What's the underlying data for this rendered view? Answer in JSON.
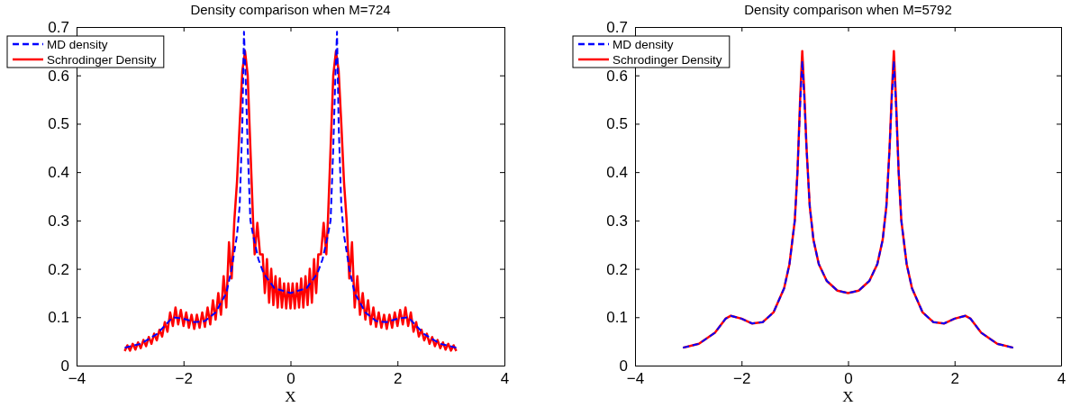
{
  "chart_data": [
    {
      "type": "line",
      "title": "Density comparison when M=724",
      "xlabel": "X",
      "xlim": [
        -4,
        4
      ],
      "xticks": [
        -4,
        -2,
        0,
        2,
        4
      ],
      "ylim": [
        0,
        0.7
      ],
      "yticks": [
        0,
        0.1,
        0.2,
        0.3,
        0.4,
        0.5,
        0.6,
        0.7
      ],
      "grid": false,
      "legend": "top left",
      "series": [
        {
          "name": "MD density",
          "color": "#0000ff",
          "line_style": "dashed",
          "x": [
            -3.1,
            -2.8,
            -2.5,
            -2.2,
            -2.0,
            -1.8,
            -1.6,
            -1.4,
            -1.2,
            -1.1,
            -1.0,
            -0.95,
            -0.9,
            -0.87,
            -0.84,
            -0.8,
            -0.75,
            -0.7,
            -0.6,
            -0.5,
            -0.3,
            0,
            0.3,
            0.5,
            0.6,
            0.7,
            0.75,
            0.8,
            0.84,
            0.87,
            0.9,
            0.95,
            1.0,
            1.1,
            1.2,
            1.4,
            1.6,
            1.8,
            2.0,
            2.2,
            2.5,
            2.8,
            3.1
          ],
          "values": [
            0.037,
            0.045,
            0.065,
            0.1,
            0.097,
            0.09,
            0.092,
            0.11,
            0.15,
            0.2,
            0.27,
            0.33,
            0.5,
            0.69,
            0.6,
            0.45,
            0.3,
            0.27,
            0.22,
            0.19,
            0.16,
            0.15,
            0.16,
            0.19,
            0.22,
            0.27,
            0.3,
            0.45,
            0.6,
            0.69,
            0.5,
            0.33,
            0.27,
            0.2,
            0.15,
            0.11,
            0.092,
            0.09,
            0.097,
            0.1,
            0.065,
            0.045,
            0.037
          ]
        },
        {
          "name": "Schrodinger Density",
          "color": "#ff0000",
          "line_style": "solid",
          "x": [
            -3.1,
            -3.05,
            -3.0,
            -2.95,
            -2.9,
            -2.85,
            -2.8,
            -2.75,
            -2.7,
            -2.65,
            -2.6,
            -2.55,
            -2.5,
            -2.45,
            -2.4,
            -2.35,
            -2.3,
            -2.25,
            -2.2,
            -2.15,
            -2.1,
            -2.05,
            -2.0,
            -1.95,
            -1.9,
            -1.85,
            -1.8,
            -1.75,
            -1.7,
            -1.65,
            -1.6,
            -1.55,
            -1.5,
            -1.45,
            -1.4,
            -1.35,
            -1.3,
            -1.25,
            -1.2,
            -1.15,
            -1.1,
            -1.05,
            -1.0,
            -0.95,
            -0.9,
            -0.85,
            -0.8,
            -0.75,
            -0.7,
            -0.67,
            -0.62,
            -0.57,
            -0.52,
            -0.48,
            -0.44,
            -0.4,
            -0.36,
            -0.32,
            -0.28,
            -0.24,
            -0.2,
            -0.16,
            -0.12,
            -0.08,
            -0.04,
            0,
            0.04,
            0.08,
            0.12,
            0.16,
            0.2,
            0.24,
            0.28,
            0.32,
            0.36,
            0.4,
            0.44,
            0.48,
            0.52,
            0.57,
            0.62,
            0.67,
            0.7,
            0.75,
            0.8,
            0.85,
            0.9,
            0.95,
            1.0,
            1.05,
            1.1,
            1.15,
            1.2,
            1.25,
            1.3,
            1.35,
            1.4,
            1.45,
            1.5,
            1.55,
            1.6,
            1.65,
            1.7,
            1.75,
            1.8,
            1.85,
            1.9,
            1.95,
            2.0,
            2.05,
            2.1,
            2.15,
            2.2,
            2.25,
            2.3,
            2.35,
            2.4,
            2.45,
            2.5,
            2.55,
            2.6,
            2.65,
            2.7,
            2.75,
            2.8,
            2.85,
            2.9,
            2.95,
            3.0,
            3.05,
            3.1
          ],
          "values": [
            0.03,
            0.042,
            0.031,
            0.045,
            0.033,
            0.048,
            0.036,
            0.053,
            0.04,
            0.059,
            0.045,
            0.066,
            0.052,
            0.074,
            0.06,
            0.09,
            0.07,
            0.11,
            0.082,
            0.12,
            0.085,
            0.115,
            0.082,
            0.11,
            0.078,
            0.105,
            0.076,
            0.105,
            0.078,
            0.11,
            0.08,
            0.12,
            0.085,
            0.135,
            0.095,
            0.15,
            0.105,
            0.185,
            0.12,
            0.255,
            0.18,
            0.3,
            0.38,
            0.5,
            0.61,
            0.65,
            0.6,
            0.45,
            0.3,
            0.23,
            0.295,
            0.23,
            0.23,
            0.15,
            0.22,
            0.13,
            0.2,
            0.125,
            0.185,
            0.12,
            0.18,
            0.12,
            0.17,
            0.118,
            0.17,
            0.118,
            0.17,
            0.118,
            0.17,
            0.12,
            0.18,
            0.12,
            0.185,
            0.125,
            0.2,
            0.13,
            0.22,
            0.15,
            0.23,
            0.23,
            0.295,
            0.23,
            0.3,
            0.45,
            0.6,
            0.65,
            0.61,
            0.5,
            0.38,
            0.3,
            0.18,
            0.255,
            0.12,
            0.185,
            0.105,
            0.15,
            0.095,
            0.135,
            0.085,
            0.12,
            0.08,
            0.11,
            0.078,
            0.105,
            0.076,
            0.105,
            0.078,
            0.11,
            0.082,
            0.115,
            0.085,
            0.12,
            0.082,
            0.11,
            0.07,
            0.09,
            0.06,
            0.074,
            0.052,
            0.066,
            0.045,
            0.059,
            0.04,
            0.053,
            0.036,
            0.048,
            0.033,
            0.045,
            0.031,
            0.042,
            0.03
          ]
        }
      ]
    },
    {
      "type": "line",
      "title": "Density comparison when M=5792",
      "xlabel": "X",
      "xlim": [
        -4,
        4
      ],
      "xticks": [
        -4,
        -2,
        0,
        2,
        4
      ],
      "ylim": [
        0,
        0.7
      ],
      "yticks": [
        0,
        0.1,
        0.2,
        0.3,
        0.4,
        0.5,
        0.6,
        0.7
      ],
      "grid": false,
      "legend": "top left",
      "series": [
        {
          "name": "MD density",
          "color": "#0000ff",
          "line_style": "dashed",
          "x": [
            -3.1,
            -2.8,
            -2.5,
            -2.3,
            -2.2,
            -2.0,
            -1.8,
            -1.6,
            -1.4,
            -1.2,
            -1.1,
            -1.0,
            -0.95,
            -0.9,
            -0.86,
            -0.82,
            -0.78,
            -0.72,
            -0.65,
            -0.55,
            -0.4,
            -0.2,
            0,
            0.2,
            0.4,
            0.55,
            0.65,
            0.72,
            0.78,
            0.82,
            0.86,
            0.9,
            0.95,
            1.0,
            1.1,
            1.2,
            1.4,
            1.6,
            1.8,
            2.0,
            2.2,
            2.3,
            2.5,
            2.8,
            3.1
          ],
          "values": [
            0.037,
            0.045,
            0.068,
            0.097,
            0.103,
            0.097,
            0.087,
            0.09,
            0.11,
            0.16,
            0.21,
            0.3,
            0.4,
            0.54,
            0.63,
            0.55,
            0.45,
            0.33,
            0.26,
            0.21,
            0.175,
            0.155,
            0.15,
            0.155,
            0.175,
            0.21,
            0.26,
            0.33,
            0.45,
            0.55,
            0.63,
            0.54,
            0.4,
            0.3,
            0.21,
            0.16,
            0.11,
            0.09,
            0.087,
            0.097,
            0.103,
            0.097,
            0.068,
            0.045,
            0.037
          ]
        },
        {
          "name": "Schrodinger Density",
          "color": "#ff0000",
          "line_style": "solid",
          "x": [
            -3.1,
            -2.8,
            -2.5,
            -2.3,
            -2.2,
            -2.0,
            -1.8,
            -1.6,
            -1.4,
            -1.2,
            -1.1,
            -1.0,
            -0.95,
            -0.9,
            -0.86,
            -0.82,
            -0.78,
            -0.72,
            -0.65,
            -0.55,
            -0.4,
            -0.2,
            0,
            0.2,
            0.4,
            0.55,
            0.65,
            0.72,
            0.78,
            0.82,
            0.86,
            0.9,
            0.95,
            1.0,
            1.1,
            1.2,
            1.4,
            1.6,
            1.8,
            2.0,
            2.2,
            2.3,
            2.5,
            2.8,
            3.1
          ],
          "values": [
            0.037,
            0.045,
            0.068,
            0.097,
            0.103,
            0.097,
            0.087,
            0.09,
            0.11,
            0.16,
            0.21,
            0.3,
            0.4,
            0.55,
            0.65,
            0.56,
            0.45,
            0.33,
            0.26,
            0.21,
            0.175,
            0.155,
            0.15,
            0.155,
            0.175,
            0.21,
            0.26,
            0.33,
            0.45,
            0.56,
            0.65,
            0.55,
            0.4,
            0.3,
            0.21,
            0.16,
            0.11,
            0.09,
            0.087,
            0.097,
            0.103,
            0.097,
            0.068,
            0.045,
            0.037
          ]
        }
      ]
    }
  ]
}
